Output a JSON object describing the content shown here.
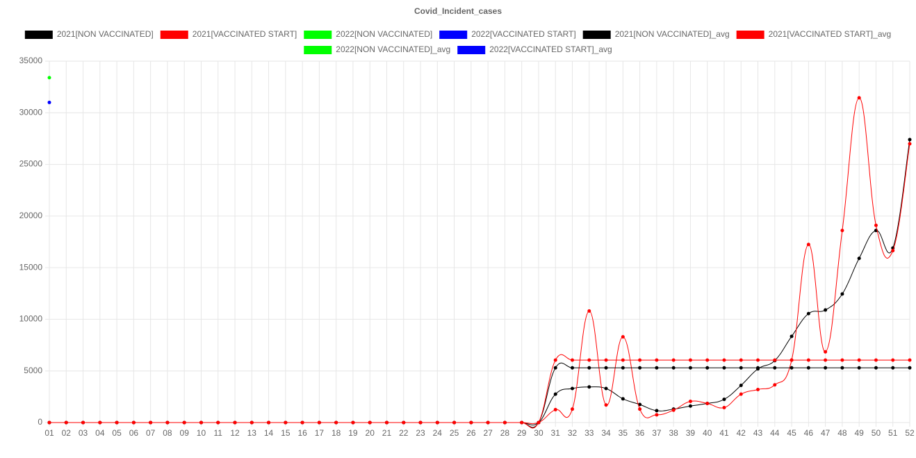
{
  "chart_data": {
    "type": "line",
    "title": "Covid_Incident_cases",
    "categories": [
      "01",
      "02",
      "03",
      "04",
      "05",
      "06",
      "07",
      "08",
      "09",
      "10",
      "11",
      "12",
      "13",
      "14",
      "15",
      "16",
      "17",
      "18",
      "19",
      "20",
      "21",
      "22",
      "23",
      "24",
      "25",
      "26",
      "27",
      "28",
      "29",
      "30",
      "31",
      "32",
      "33",
      "34",
      "35",
      "36",
      "37",
      "38",
      "39",
      "40",
      "41",
      "42",
      "43",
      "44",
      "45",
      "46",
      "47",
      "48",
      "49",
      "50",
      "51",
      "52"
    ],
    "ylim": [
      0,
      35000
    ],
    "yticks": [
      0,
      5000,
      10000,
      15000,
      20000,
      25000,
      30000,
      35000
    ],
    "grid": true,
    "series": [
      {
        "name": "2021[NON VACCINATED]",
        "color": "#000000",
        "values": [
          0,
          0,
          0,
          0,
          0,
          0,
          0,
          0,
          0,
          0,
          0,
          0,
          0,
          0,
          0,
          0,
          0,
          0,
          0,
          0,
          0,
          0,
          0,
          0,
          0,
          0,
          0,
          0,
          0,
          0,
          2750,
          3300,
          3450,
          3300,
          2300,
          1750,
          1150,
          1300,
          1600,
          1850,
          2250,
          3600,
          5200,
          6000,
          8350,
          10550,
          10900,
          12450,
          15900,
          18600,
          16900,
          27400
        ]
      },
      {
        "name": "2021[VACCINATED START]",
        "color": "#ff0000",
        "values": [
          0,
          0,
          0,
          0,
          0,
          0,
          0,
          0,
          0,
          0,
          0,
          0,
          0,
          0,
          0,
          0,
          0,
          0,
          0,
          0,
          0,
          0,
          0,
          0,
          0,
          0,
          0,
          0,
          0,
          0,
          1250,
          1300,
          10800,
          1700,
          8300,
          1300,
          750,
          1200,
          2050,
          1850,
          1450,
          2750,
          3200,
          3650,
          6050,
          17250,
          6850,
          18600,
          31450,
          19100,
          16650,
          27000
        ]
      },
      {
        "name": "2022[NON VACCINATED]",
        "color": "#00ff00",
        "values": [
          33400,
          null,
          null,
          null,
          null,
          null,
          null,
          null,
          null,
          null,
          null,
          null,
          null,
          null,
          null,
          null,
          null,
          null,
          null,
          null,
          null,
          null,
          null,
          null,
          null,
          null,
          null,
          null,
          null,
          null,
          null,
          null,
          null,
          null,
          null,
          null,
          null,
          null,
          null,
          null,
          null,
          null,
          null,
          null,
          null,
          null,
          null,
          null,
          null,
          null,
          null,
          null
        ]
      },
      {
        "name": "2022[VACCINATED START]",
        "color": "#0000ff",
        "values": [
          31000,
          null,
          null,
          null,
          null,
          null,
          null,
          null,
          null,
          null,
          null,
          null,
          null,
          null,
          null,
          null,
          null,
          null,
          null,
          null,
          null,
          null,
          null,
          null,
          null,
          null,
          null,
          null,
          null,
          null,
          null,
          null,
          null,
          null,
          null,
          null,
          null,
          null,
          null,
          null,
          null,
          null,
          null,
          null,
          null,
          null,
          null,
          null,
          null,
          null,
          null,
          null
        ]
      },
      {
        "name": "2021[NON VACCINATED]_avg",
        "color": "#000000",
        "values": [
          0,
          0,
          0,
          0,
          0,
          0,
          0,
          0,
          0,
          0,
          0,
          0,
          0,
          0,
          0,
          0,
          0,
          0,
          0,
          0,
          0,
          0,
          0,
          0,
          0,
          0,
          0,
          0,
          0,
          0,
          5300,
          5300,
          5300,
          5300,
          5300,
          5300,
          5300,
          5300,
          5300,
          5300,
          5300,
          5300,
          5300,
          5300,
          5300,
          5300,
          5300,
          5300,
          5300,
          5300,
          5300,
          5300
        ]
      },
      {
        "name": "2021[VACCINATED START]_avg",
        "color": "#ff0000",
        "values": [
          0,
          0,
          0,
          0,
          0,
          0,
          0,
          0,
          0,
          0,
          0,
          0,
          0,
          0,
          0,
          0,
          0,
          0,
          0,
          0,
          0,
          0,
          0,
          0,
          0,
          0,
          0,
          0,
          0,
          0,
          6050,
          6050,
          6050,
          6050,
          6050,
          6050,
          6050,
          6050,
          6050,
          6050,
          6050,
          6050,
          6050,
          6050,
          6050,
          6050,
          6050,
          6050,
          6050,
          6050,
          6050,
          6050
        ]
      },
      {
        "name": "2022[NON VACCINATED]_avg",
        "color": "#00ff00",
        "values": [
          null,
          null,
          null,
          null,
          null,
          null,
          null,
          null,
          null,
          null,
          null,
          null,
          null,
          null,
          null,
          null,
          null,
          null,
          null,
          null,
          null,
          null,
          null,
          null,
          null,
          null,
          null,
          null,
          null,
          null,
          null,
          null,
          null,
          null,
          null,
          null,
          null,
          null,
          null,
          null,
          null,
          null,
          null,
          null,
          null,
          null,
          null,
          null,
          null,
          null,
          null,
          null
        ]
      },
      {
        "name": "2022[VACCINATED START]_avg",
        "color": "#0000ff",
        "values": [
          null,
          null,
          null,
          null,
          null,
          null,
          null,
          null,
          null,
          null,
          null,
          null,
          null,
          null,
          null,
          null,
          null,
          null,
          null,
          null,
          null,
          null,
          null,
          null,
          null,
          null,
          null,
          null,
          null,
          null,
          null,
          null,
          null,
          null,
          null,
          null,
          null,
          null,
          null,
          null,
          null,
          null,
          null,
          null,
          null,
          null,
          null,
          null,
          null,
          null,
          null,
          null
        ]
      }
    ]
  }
}
